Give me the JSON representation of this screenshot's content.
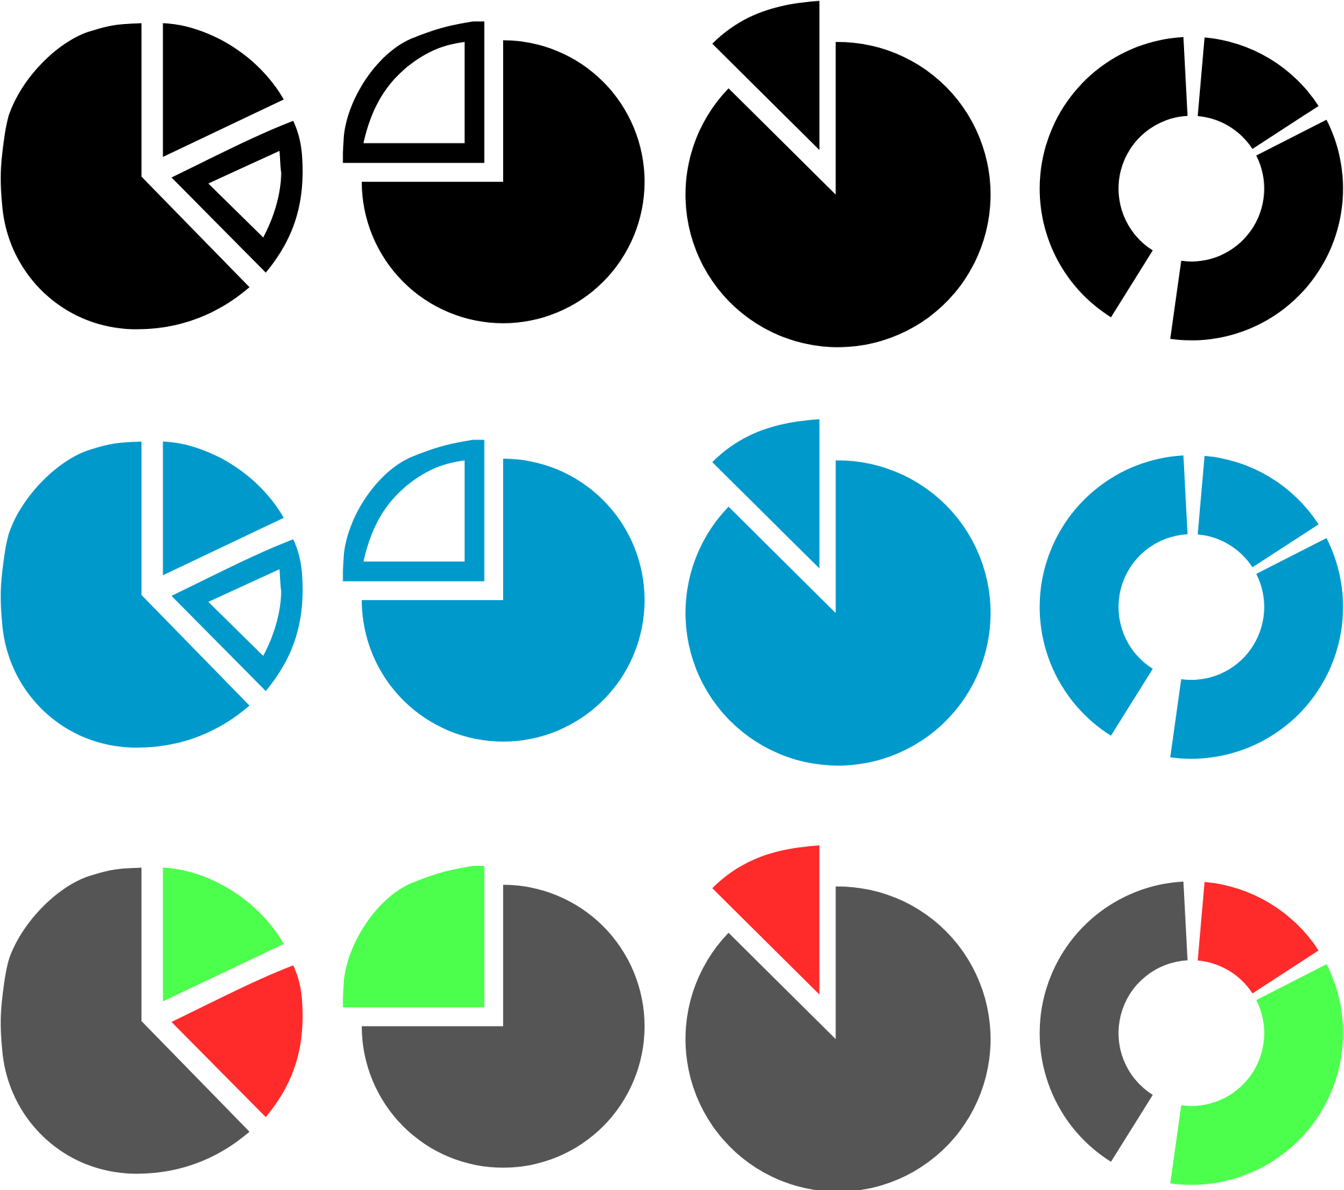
{
  "palette": {
    "black": "#000000",
    "blue": "#0099cc",
    "gray": "#555555",
    "green": "#4cff4c",
    "red": "#ff2a2a"
  },
  "rows": [
    {
      "name": "black-row",
      "icons": [
        {
          "name": "pie-exploded-outline-icon",
          "colors": {
            "main": "#000000",
            "top": "#000000",
            "wedge": "#000000"
          },
          "wedge_outline": true
        },
        {
          "name": "pie-quarter-outline-icon",
          "colors": {
            "main": "#000000",
            "quarter": "#000000"
          },
          "quarter_outline": true
        },
        {
          "name": "pie-slice-icon",
          "colors": {
            "main": "#000000",
            "slice": "#000000"
          }
        },
        {
          "name": "donut-chart-icon",
          "colors": {
            "a": "#000000",
            "b": "#000000",
            "c": "#000000"
          }
        }
      ]
    },
    {
      "name": "blue-row",
      "icons": [
        {
          "name": "pie-exploded-outline-icon",
          "colors": {
            "main": "#0099cc",
            "top": "#0099cc",
            "wedge": "#0099cc"
          },
          "wedge_outline": true
        },
        {
          "name": "pie-quarter-outline-icon",
          "colors": {
            "main": "#0099cc",
            "quarter": "#0099cc"
          },
          "quarter_outline": true
        },
        {
          "name": "pie-slice-icon",
          "colors": {
            "main": "#0099cc",
            "slice": "#0099cc"
          }
        },
        {
          "name": "donut-chart-icon",
          "colors": {
            "a": "#0099cc",
            "b": "#0099cc",
            "c": "#0099cc"
          }
        }
      ]
    },
    {
      "name": "color-row",
      "icons": [
        {
          "name": "pie-exploded-icon",
          "colors": {
            "main": "#555555",
            "top": "#4cff4c",
            "wedge": "#ff2a2a"
          },
          "wedge_outline": false
        },
        {
          "name": "pie-quarter-icon",
          "colors": {
            "main": "#555555",
            "quarter": "#4cff4c"
          },
          "quarter_outline": false
        },
        {
          "name": "pie-slice-icon",
          "colors": {
            "main": "#555555",
            "slice": "#ff2a2a"
          }
        },
        {
          "name": "donut-chart-icon",
          "colors": {
            "a": "#555555",
            "b": "#ff2a2a",
            "c": "#4cff4c"
          }
        }
      ]
    }
  ]
}
